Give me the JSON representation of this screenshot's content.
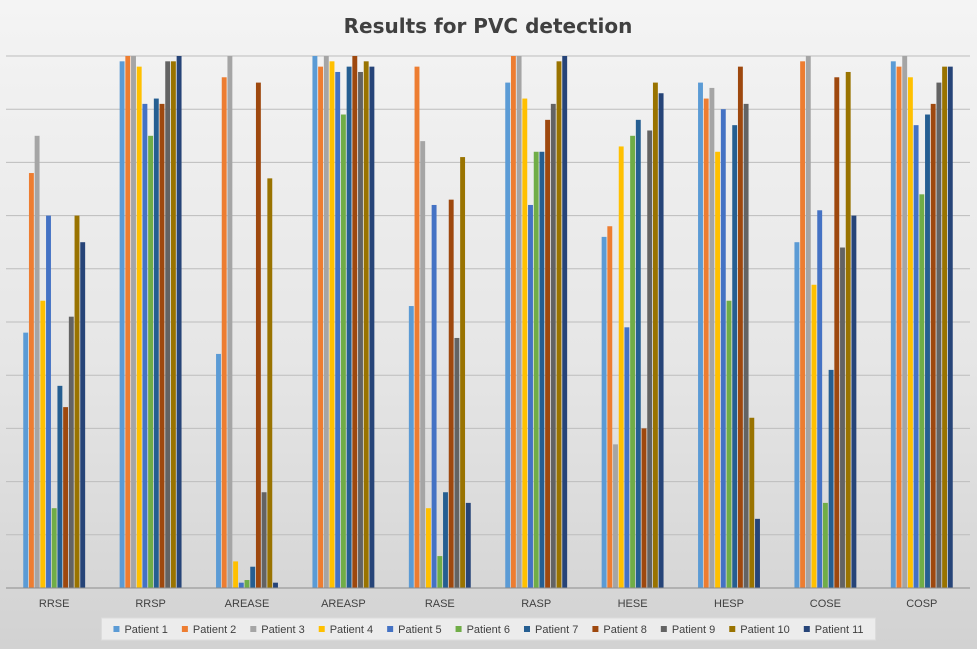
{
  "chart_data": {
    "type": "bar",
    "title": "Results for PVC detection",
    "xlabel": "",
    "ylabel": "",
    "ylim": [
      0,
      100
    ],
    "grid": true,
    "legend_position": "bottom",
    "categories": [
      "RRSE",
      "RRSP",
      "AREASE",
      "AREASP",
      "RASE",
      "RASP",
      "HESE",
      "HESP",
      "COSE",
      "COSP"
    ],
    "series": [
      {
        "name": "Patient 1",
        "color": "#5B9BD5",
        "values": [
          48,
          99,
          44,
          100,
          53,
          95,
          66,
          95,
          65,
          99
        ]
      },
      {
        "name": "Patient 2",
        "color": "#ED7D31",
        "values": [
          78,
          100,
          96,
          98,
          98,
          100,
          68,
          92,
          99,
          98
        ]
      },
      {
        "name": "Patient 3",
        "color": "#A5A5A5",
        "values": [
          85,
          100,
          100,
          100,
          84,
          100,
          27,
          94,
          100,
          100
        ]
      },
      {
        "name": "Patient 4",
        "color": "#FFC000",
        "values": [
          54,
          98,
          5,
          99,
          15,
          92,
          83,
          82,
          57,
          96
        ]
      },
      {
        "name": "Patient 5",
        "color": "#4472C4",
        "values": [
          70,
          91,
          1,
          97,
          72,
          72,
          49,
          90,
          71,
          87
        ]
      },
      {
        "name": "Patient 6",
        "color": "#70AD47",
        "values": [
          15,
          85,
          1.5,
          89,
          6,
          82,
          85,
          54,
          16,
          74
        ]
      },
      {
        "name": "Patient 7",
        "color": "#255E91",
        "values": [
          38,
          92,
          4,
          98,
          18,
          82,
          88,
          87,
          41,
          89
        ]
      },
      {
        "name": "Patient 8",
        "color": "#9E480E",
        "values": [
          34,
          91,
          95,
          100,
          73,
          88,
          30,
          98,
          96,
          91
        ]
      },
      {
        "name": "Patient 9",
        "color": "#636363",
        "values": [
          51,
          99,
          18,
          97,
          47,
          91,
          86,
          91,
          64,
          95
        ]
      },
      {
        "name": "Patient 10",
        "color": "#997300",
        "values": [
          70,
          99,
          77,
          99,
          81,
          99,
          95,
          32,
          97,
          98
        ]
      },
      {
        "name": "Patient 11",
        "color": "#264478",
        "values": [
          65,
          100,
          1,
          98,
          16,
          100,
          93,
          13,
          70,
          98
        ]
      }
    ]
  }
}
